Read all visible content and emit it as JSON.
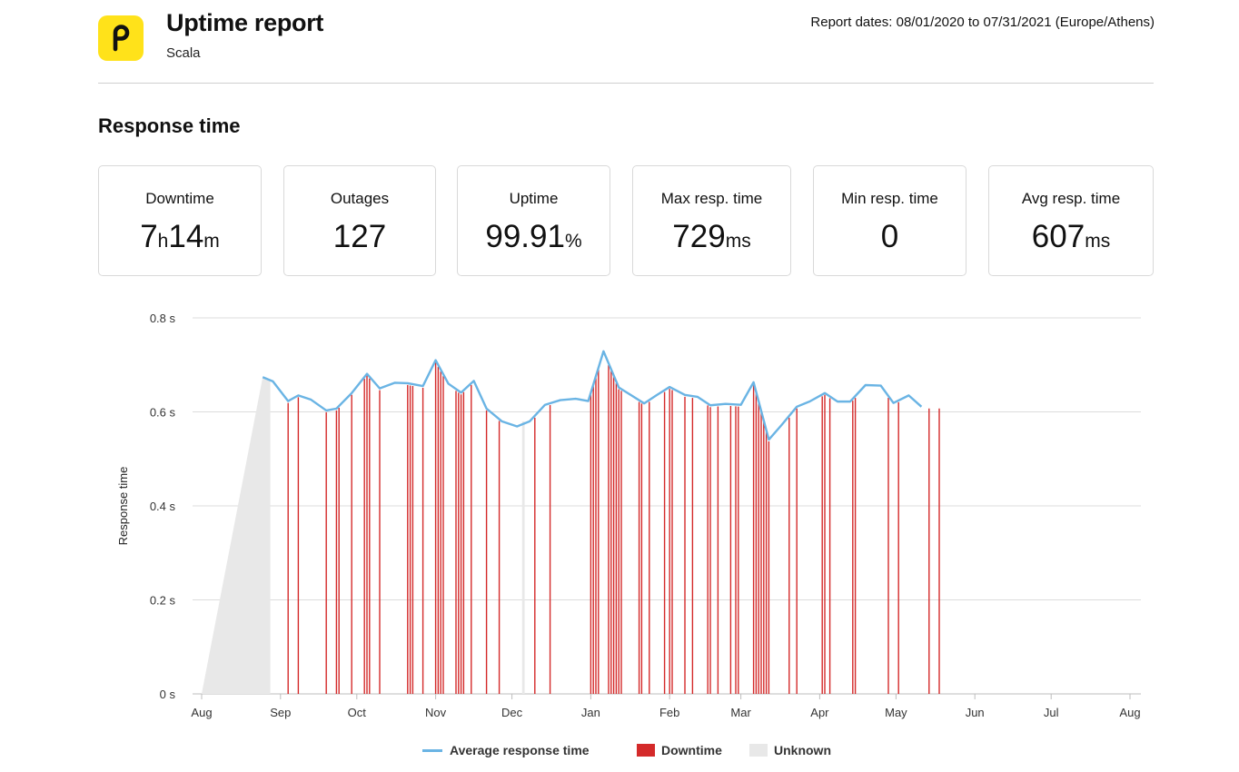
{
  "header": {
    "title": "Uptime report",
    "subtitle": "Scala",
    "report_dates": "Report dates: 08/01/2020 to 07/31/2021 (Europe/Athens)",
    "logo_icon": "pingdom-logo-icon"
  },
  "section_title": "Response time",
  "stats": [
    {
      "label": "Downtime",
      "value_html": "7<span class=\"u\">h</span>14<span class=\"u\">m</span>"
    },
    {
      "label": "Outages",
      "value_html": "127"
    },
    {
      "label": "Uptime",
      "value_html": "99.91<span class=\"u\">%</span>"
    },
    {
      "label": "Max resp. time",
      "value_html": "729<span class=\"u\">ms</span>"
    },
    {
      "label": "Min resp. time",
      "value_html": "0"
    },
    {
      "label": "Avg resp. time",
      "value_html": "607<span class=\"u\">ms</span>"
    }
  ],
  "colors": {
    "line": "#6ab4e4",
    "downtime": "#d42a2a",
    "unknown": "#e8e8e8",
    "accent": "#ffe21a"
  },
  "legend": [
    {
      "name": "Average response time",
      "swatch": "line"
    },
    {
      "name": "Downtime",
      "swatch": "downtime"
    },
    {
      "name": "Unknown",
      "swatch": "unknown"
    }
  ],
  "chart_data": {
    "type": "line",
    "ylabel": "Response time",
    "y_ticks": [
      "0 s",
      "0.2 s",
      "0.4 s",
      "0.6 s",
      "0.8 s"
    ],
    "y_tick_values": [
      0,
      0.2,
      0.4,
      0.6,
      0.8
    ],
    "ylim": [
      0,
      0.8
    ],
    "xlim": [
      "2020-08-01",
      "2021-08-01"
    ],
    "x_ticks": [
      {
        "label": "Aug",
        "date": "2020-08-01"
      },
      {
        "label": "Sep",
        "date": "2020-09-01"
      },
      {
        "label": "Oct",
        "date": "2020-10-01"
      },
      {
        "label": "Nov",
        "date": "2020-11-01"
      },
      {
        "label": "Dec",
        "date": "2020-12-01"
      },
      {
        "label": "Jan",
        "date": "2021-01-01"
      },
      {
        "label": "Feb",
        "date": "2021-02-01"
      },
      {
        "label": "Mar",
        "date": "2021-03-01"
      },
      {
        "label": "Apr",
        "date": "2021-04-01"
      },
      {
        "label": "May",
        "date": "2021-05-01"
      },
      {
        "label": "Jun",
        "date": "2021-06-01"
      },
      {
        "label": "Jul",
        "date": "2021-07-01"
      },
      {
        "label": "Aug",
        "date": "2021-08-01"
      }
    ],
    "grid": true,
    "legend_position": "bottom",
    "series": [
      {
        "name": "Average response time",
        "points": [
          [
            "2020-08-25",
            0.674
          ],
          [
            "2020-08-29",
            0.665
          ],
          [
            "2020-09-04",
            0.623
          ],
          [
            "2020-09-08",
            0.635
          ],
          [
            "2020-09-13",
            0.626
          ],
          [
            "2020-09-19",
            0.603
          ],
          [
            "2020-09-23",
            0.607
          ],
          [
            "2020-09-29",
            0.64
          ],
          [
            "2020-10-05",
            0.681
          ],
          [
            "2020-10-10",
            0.65
          ],
          [
            "2020-10-16",
            0.662
          ],
          [
            "2020-10-21",
            0.661
          ],
          [
            "2020-10-27",
            0.655
          ],
          [
            "2020-11-01",
            0.71
          ],
          [
            "2020-11-06",
            0.66
          ],
          [
            "2020-11-11",
            0.641
          ],
          [
            "2020-11-16",
            0.666
          ],
          [
            "2020-11-21",
            0.607
          ],
          [
            "2020-11-27",
            0.58
          ],
          [
            "2020-12-03",
            0.569
          ],
          [
            "2020-12-08",
            0.58
          ],
          [
            "2020-12-14",
            0.615
          ],
          [
            "2020-12-20",
            0.625
          ],
          [
            "2020-12-26",
            0.628
          ],
          [
            "2020-12-31",
            0.623
          ],
          [
            "2021-01-06",
            0.729
          ],
          [
            "2021-01-12",
            0.652
          ],
          [
            "2021-01-17",
            0.635
          ],
          [
            "2021-01-22",
            0.618
          ],
          [
            "2021-01-27",
            0.636
          ],
          [
            "2021-02-01",
            0.653
          ],
          [
            "2021-02-07",
            0.636
          ],
          [
            "2021-02-12",
            0.632
          ],
          [
            "2021-02-17",
            0.614
          ],
          [
            "2021-02-23",
            0.617
          ],
          [
            "2021-03-01",
            0.615
          ],
          [
            "2021-03-06",
            0.663
          ],
          [
            "2021-03-12",
            0.541
          ],
          [
            "2021-03-17",
            0.572
          ],
          [
            "2021-03-23",
            0.611
          ],
          [
            "2021-03-28",
            0.622
          ],
          [
            "2021-04-03",
            0.64
          ],
          [
            "2021-04-08",
            0.622
          ],
          [
            "2021-04-13",
            0.622
          ],
          [
            "2021-04-19",
            0.657
          ],
          [
            "2021-04-25",
            0.656
          ],
          [
            "2021-04-30",
            0.619
          ],
          [
            "2021-05-06",
            0.635
          ],
          [
            "2021-05-11",
            0.611
          ]
        ]
      },
      {
        "name": "Downtime",
        "dates": [
          "2020-09-04",
          "2020-09-08",
          "2020-09-19",
          "2020-09-23",
          "2020-09-24",
          "2020-09-29",
          "2020-10-04",
          "2020-10-05",
          "2020-10-06",
          "2020-10-10",
          "2020-10-21",
          "2020-10-22",
          "2020-10-23",
          "2020-10-27",
          "2020-11-01",
          "2020-11-02",
          "2020-11-03",
          "2020-11-04",
          "2020-11-09",
          "2020-11-10",
          "2020-11-11",
          "2020-11-12",
          "2020-11-15",
          "2020-11-21",
          "2020-11-26",
          "2020-12-10",
          "2020-12-16",
          "2021-01-01",
          "2021-01-02",
          "2021-01-03",
          "2021-01-04",
          "2021-01-08",
          "2021-01-09",
          "2021-01-10",
          "2021-01-11",
          "2021-01-12",
          "2021-01-13",
          "2021-01-20",
          "2021-01-21",
          "2021-01-24",
          "2021-01-30",
          "2021-02-01",
          "2021-02-02",
          "2021-02-07",
          "2021-02-10",
          "2021-02-16",
          "2021-02-17",
          "2021-02-20",
          "2021-02-25",
          "2021-02-27",
          "2021-02-28",
          "2021-03-06",
          "2021-03-07",
          "2021-03-08",
          "2021-03-09",
          "2021-03-10",
          "2021-03-11",
          "2021-03-12",
          "2021-03-20",
          "2021-03-23",
          "2021-04-02",
          "2021-04-03",
          "2021-04-05",
          "2021-04-14",
          "2021-04-15",
          "2021-04-28",
          "2021-05-02",
          "2021-05-14",
          "2021-05-18"
        ]
      },
      {
        "name": "Unknown",
        "ranges": [
          [
            "2020-08-01",
            "2020-08-28"
          ],
          [
            "2020-12-05",
            "2020-12-06"
          ]
        ]
      }
    ]
  }
}
